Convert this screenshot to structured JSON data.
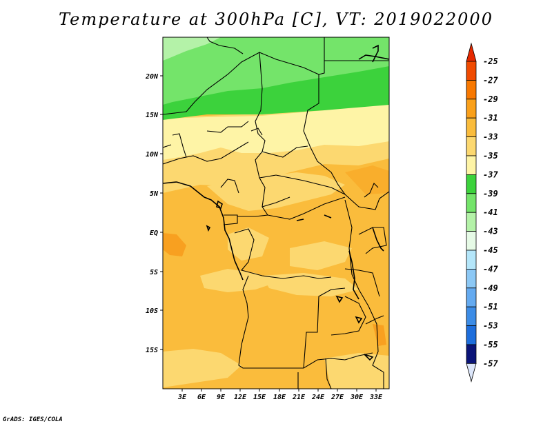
{
  "title": "Temperature at 300hPa [C], VT: 2019022000",
  "credit": "GrADS: IGES/COLA",
  "map": {
    "region": "Central Africa",
    "lat_labels": [
      "20N",
      "15N",
      "10N",
      "5N",
      "EQ",
      "5S",
      "10S",
      "15S"
    ],
    "lon_labels": [
      "3E",
      "6E",
      "9E",
      "12E",
      "15E",
      "18E",
      "21E",
      "24E",
      "27E",
      "30E",
      "33E"
    ]
  },
  "colorbar": {
    "labels": [
      "-25",
      "-27",
      "-29",
      "-31",
      "-33",
      "-35",
      "-37",
      "-39",
      "-41",
      "-43",
      "-45",
      "-47",
      "-49",
      "-51",
      "-53",
      "-55",
      "-57"
    ],
    "colors": [
      "#f04a00",
      "#f87800",
      "#faa01a",
      "#fabc3c",
      "#fcd870",
      "#fef4a6",
      "#3cd23c",
      "#74e46a",
      "#b4f2a8",
      "#e6fae6",
      "#b4e6fa",
      "#8cc8f5",
      "#64aaf0",
      "#3c8ce6",
      "#1e6edc",
      "#1050c8",
      "#0a1478"
    ],
    "top_color": "#e62800",
    "bottom_color": "#dce6fa"
  }
}
